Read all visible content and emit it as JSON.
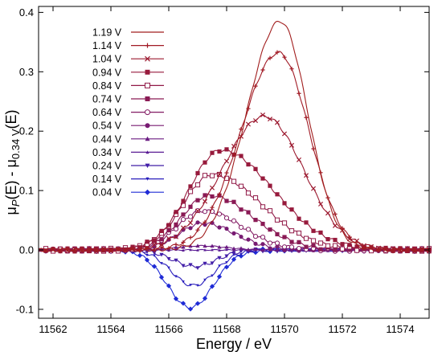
{
  "chart_data": {
    "type": "line",
    "title": "",
    "xlabel": "Energy / eV",
    "ylabel": {
      "parts": [
        "μ",
        "P",
        "(E) - μ",
        "0.34 V",
        "(E)"
      ]
    },
    "xlim": [
      11561.5,
      11575
    ],
    "ylim": [
      -0.115,
      0.41
    ],
    "x_ticks": [
      11562,
      11564,
      11566,
      11568,
      11570,
      11572,
      11574
    ],
    "x_tick_labels": [
      "11562",
      "11564",
      "11566",
      "11568",
      "11570",
      "11572",
      "11574"
    ],
    "y_ticks": [
      -0.1,
      0.0,
      0.1,
      0.2,
      0.3,
      0.4
    ],
    "y_tick_labels": [
      "-0.1",
      "0.0",
      "0.1",
      "0.2",
      "0.3",
      "0.4"
    ],
    "grid": false,
    "legend_position": "top-left",
    "series": [
      {
        "name": "1.19 V",
        "color": "#a11d1d",
        "marker": "none",
        "peak_x": 11569.85,
        "peak_y": 0.385,
        "width_left": 1.15,
        "width_right": 0.95,
        "rise_x": 11567.6
      },
      {
        "name": "1.14 V",
        "color": "#a11a25",
        "marker": "plus",
        "peak_x": 11569.8,
        "peak_y": 0.332,
        "width_left": 1.3,
        "width_right": 1.05,
        "rise_x": 11567.3
      },
      {
        "name": "1.04 V",
        "color": "#9c1a30",
        "marker": "cross",
        "peak_x": 11569.3,
        "peak_y": 0.225,
        "width_left": 1.45,
        "width_right": 1.35,
        "rise_x": 11567.0
      },
      {
        "name": "0.94 V",
        "color": "#971a3c",
        "marker": "filled-square",
        "peak_x": 11567.8,
        "peak_y": 0.168,
        "width_left": 1.1,
        "width_right": 1.8,
        "rise_x": 11566.5
      },
      {
        "name": "0.84 V",
        "color": "#911a48",
        "marker": "open-square",
        "peak_x": 11567.5,
        "peak_y": 0.127,
        "width_left": 1.0,
        "width_right": 1.7,
        "rise_x": 11566.3
      },
      {
        "name": "0.74 V",
        "color": "#8a1a55",
        "marker": "filled-square",
        "peak_x": 11567.4,
        "peak_y": 0.092,
        "width_left": 0.95,
        "width_right": 1.5,
        "rise_x": 11566.2
      },
      {
        "name": "0.64 V",
        "color": "#821a63",
        "marker": "open-circle",
        "peak_x": 11567.2,
        "peak_y": 0.066,
        "width_left": 0.9,
        "width_right": 1.3,
        "rise_x": 11566.1
      },
      {
        "name": "0.54 V",
        "color": "#781b72",
        "marker": "filled-circle",
        "peak_x": 11567.2,
        "peak_y": 0.045,
        "width_left": 0.85,
        "width_right": 1.1,
        "rise_x": 11566.1
      },
      {
        "name": "0.44 V",
        "color": "#6b1b82",
        "marker": "filled-triangle",
        "peak_x": 11567.1,
        "peak_y": 0.007,
        "width_left": 0.8,
        "width_right": 0.9,
        "rise_x": 11566.0
      },
      {
        "name": "0.34 V",
        "color": "#5a1c94",
        "marker": "small-triangle",
        "peak_x": 11567.0,
        "peak_y": 0.0,
        "width_left": 0.8,
        "width_right": 0.9,
        "rise_x": 11566.0
      },
      {
        "name": "0.24 V",
        "color": "#421ea8",
        "marker": "down-triangle",
        "peak_x": 11566.9,
        "peak_y": -0.028,
        "width_left": 0.75,
        "width_right": 0.75,
        "rise_x": 11566.0
      },
      {
        "name": "0.14 V",
        "color": "#2a1fbd",
        "marker": "small-down-triangle",
        "peak_x": 11566.85,
        "peak_y": -0.06,
        "width_left": 0.75,
        "width_right": 0.75,
        "rise_x": 11566.0
      },
      {
        "name": "0.04 V",
        "color": "#1f2bd6",
        "marker": "diamond",
        "peak_x": 11566.75,
        "peak_y": -0.097,
        "width_left": 0.8,
        "width_right": 0.8,
        "rise_x": 11566.0
      }
    ]
  }
}
